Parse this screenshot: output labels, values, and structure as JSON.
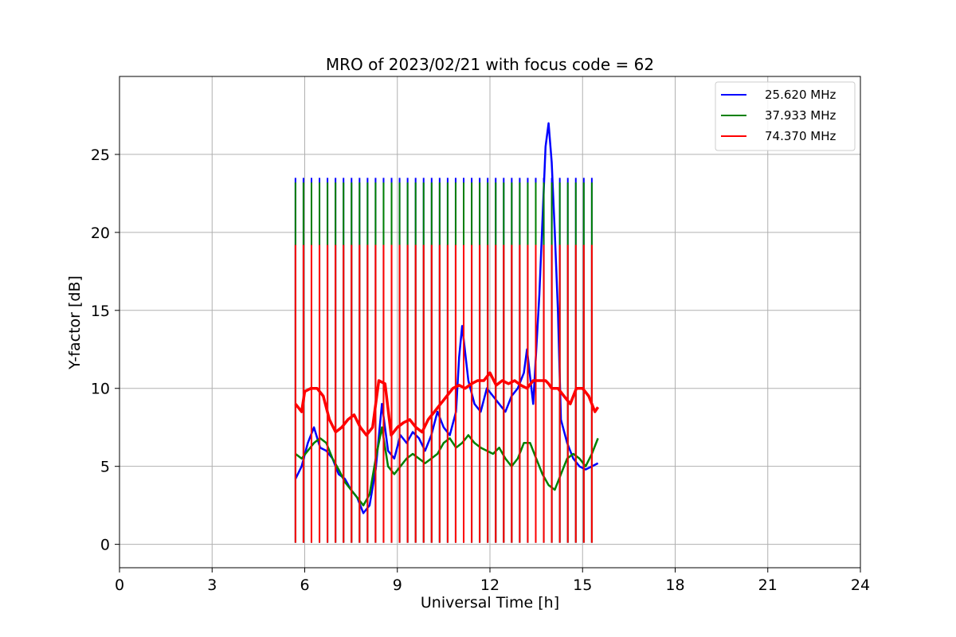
{
  "chart_data": {
    "type": "line",
    "title": "MRO of 2023/02/21 with focus code = 62",
    "xlabel": "Universal Time [h]",
    "ylabel": "Y-factor [dB]",
    "xlim": [
      0,
      24
    ],
    "ylim": [
      -1.5,
      30
    ],
    "xticks": [
      0,
      3,
      6,
      9,
      12,
      15,
      18,
      21,
      24
    ],
    "yticks": [
      0,
      5,
      10,
      15,
      20,
      25
    ],
    "grid": true,
    "legend_position": "top-right",
    "calibration": {
      "start": 5.7,
      "end": 15.3,
      "count": 38,
      "low": 0.1,
      "peaks": {
        "25.620 MHz": 23.5,
        "37.933 MHz": 23.2,
        "74.370 MHz": 19.2
      }
    },
    "series": [
      {
        "name": "25.620 MHz",
        "color": "#0000ff",
        "x": [
          5.7,
          5.9,
          6.1,
          6.3,
          6.5,
          6.7,
          6.9,
          7.1,
          7.3,
          7.5,
          7.7,
          7.9,
          8.1,
          8.3,
          8.5,
          8.7,
          8.9,
          9.1,
          9.3,
          9.5,
          9.7,
          9.9,
          10.1,
          10.3,
          10.5,
          10.7,
          10.9,
          11.0,
          11.1,
          11.3,
          11.5,
          11.7,
          11.9,
          12.1,
          12.3,
          12.5,
          12.7,
          12.9,
          13.1,
          13.2,
          13.4,
          13.6,
          13.8,
          13.9,
          14.0,
          14.1,
          14.2,
          14.3,
          14.5,
          14.7,
          14.9,
          15.1,
          15.3,
          15.5
        ],
        "values": [
          4.2,
          5.0,
          6.5,
          7.5,
          6.2,
          6.0,
          5.5,
          4.5,
          4.2,
          3.5,
          3.0,
          2.0,
          2.5,
          4.8,
          9.0,
          6.0,
          5.5,
          7.0,
          6.5,
          7.2,
          6.8,
          6.0,
          7.0,
          8.5,
          7.5,
          7.0,
          8.5,
          12.0,
          14.0,
          10.5,
          9.0,
          8.5,
          10.0,
          9.5,
          9.0,
          8.5,
          9.5,
          10.0,
          11.0,
          12.5,
          9.0,
          16.0,
          25.5,
          27.0,
          24.5,
          20.0,
          15.0,
          8.0,
          6.5,
          5.5,
          5.0,
          4.8,
          5.0,
          5.2
        ]
      },
      {
        "name": "37.933 MHz",
        "color": "#008000",
        "x": [
          5.7,
          5.9,
          6.1,
          6.3,
          6.5,
          6.7,
          6.9,
          7.1,
          7.3,
          7.5,
          7.7,
          7.9,
          8.1,
          8.3,
          8.5,
          8.7,
          8.9,
          9.1,
          9.3,
          9.5,
          9.7,
          9.9,
          10.1,
          10.3,
          10.5,
          10.7,
          10.9,
          11.1,
          11.3,
          11.5,
          11.7,
          11.9,
          12.1,
          12.3,
          12.5,
          12.7,
          12.9,
          13.1,
          13.3,
          13.5,
          13.7,
          13.9,
          14.1,
          14.3,
          14.5,
          14.7,
          14.9,
          15.1,
          15.3,
          15.5
        ],
        "values": [
          5.8,
          5.5,
          6.0,
          6.5,
          6.8,
          6.5,
          5.5,
          4.8,
          4.0,
          3.5,
          3.0,
          2.5,
          3.2,
          5.5,
          7.5,
          5.0,
          4.5,
          5.0,
          5.5,
          5.8,
          5.5,
          5.2,
          5.5,
          5.8,
          6.5,
          6.8,
          6.2,
          6.5,
          7.0,
          6.5,
          6.2,
          6.0,
          5.8,
          6.2,
          5.5,
          5.0,
          5.5,
          6.5,
          6.5,
          5.5,
          4.5,
          3.8,
          3.5,
          4.5,
          5.5,
          5.8,
          5.5,
          5.0,
          5.8,
          6.8
        ]
      },
      {
        "name": "74.370 MHz",
        "color": "#ff0000",
        "x": [
          5.7,
          5.9,
          6.0,
          6.2,
          6.4,
          6.6,
          6.8,
          7.0,
          7.2,
          7.4,
          7.6,
          7.8,
          8.0,
          8.2,
          8.4,
          8.6,
          8.8,
          9.0,
          9.2,
          9.4,
          9.6,
          9.8,
          10.0,
          10.2,
          10.4,
          10.6,
          10.8,
          11.0,
          11.2,
          11.4,
          11.6,
          11.8,
          12.0,
          12.2,
          12.4,
          12.6,
          12.8,
          13.0,
          13.2,
          13.4,
          13.6,
          13.8,
          13.9,
          14.0,
          14.2,
          14.4,
          14.6,
          14.8,
          15.0,
          15.2,
          15.4,
          15.5
        ],
        "values": [
          9.0,
          8.5,
          9.8,
          10.0,
          10.0,
          9.5,
          8.0,
          7.2,
          7.5,
          8.0,
          8.3,
          7.5,
          7.0,
          7.5,
          10.5,
          10.3,
          7.0,
          7.5,
          7.8,
          8.0,
          7.5,
          7.2,
          8.0,
          8.5,
          9.0,
          9.5,
          10.0,
          10.2,
          10.0,
          10.3,
          10.5,
          10.5,
          11.0,
          10.2,
          10.5,
          10.3,
          10.5,
          10.2,
          10.0,
          10.5,
          10.5,
          10.5,
          10.3,
          10.0,
          10.0,
          9.5,
          9.0,
          10.0,
          10.0,
          9.5,
          8.5,
          8.8
        ]
      }
    ]
  }
}
